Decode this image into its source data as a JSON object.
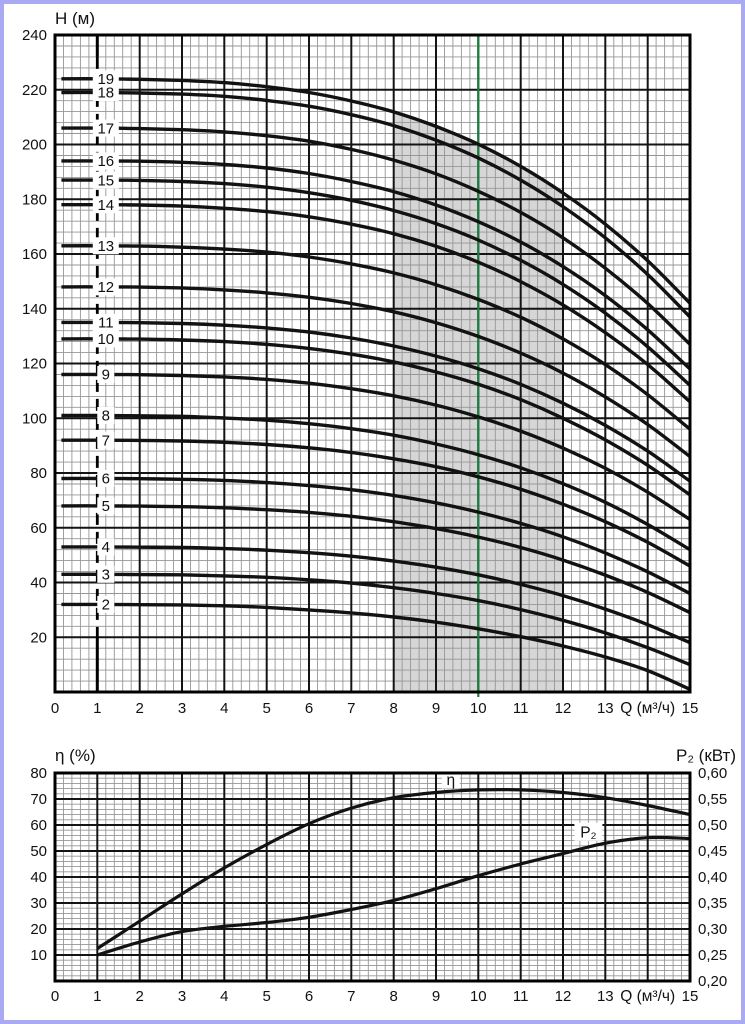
{
  "page": {
    "background": "#ffffff",
    "border_color": "#a9aaf2"
  },
  "chart_data": [
    {
      "type": "line",
      "name": "head-curves",
      "title": "Н (м)",
      "xlabel": "Q (м³/ч)",
      "x_range": [
        0,
        15
      ],
      "y_range": [
        0,
        240
      ],
      "x_tick_labels": [
        "0",
        "1",
        "2",
        "3",
        "4",
        "5",
        "6",
        "7",
        "8",
        "9",
        "10",
        "11",
        "12",
        "13"
      ],
      "x_tick_values": [
        0,
        1,
        2,
        3,
        4,
        5,
        6,
        7,
        8,
        9,
        10,
        11,
        12,
        13
      ],
      "x_end_tick": {
        "label": "15",
        "value": 15
      },
      "x_unit_label_pos": 14,
      "y_tick_labels": [
        "240",
        "220",
        "200",
        "180",
        "160",
        "140",
        "120",
        "100",
        "80",
        "60",
        "40",
        "20"
      ],
      "y_tick_values": [
        240,
        220,
        200,
        180,
        160,
        140,
        120,
        100,
        80,
        60,
        40,
        20
      ],
      "grid": {
        "minor_x_step": 0.2,
        "minor_y_step": 4,
        "major_x_step": 1,
        "major_y_step": 20
      },
      "label_column_q": 1.2,
      "dashed_gridline_q": 1,
      "operating_band": {
        "q_start": 8,
        "q_end": 12,
        "color": "#d6d6d6"
      },
      "nominal_line": {
        "q": 10,
        "color": "#1b7e3f"
      },
      "q_samples": [
        0.15,
        1,
        2,
        3,
        4,
        5,
        6,
        7,
        8,
        9,
        10,
        11,
        12,
        13,
        14,
        15
      ],
      "series": [
        {
          "label": "19",
          "H": [
            224,
            224,
            223.8,
            223.4,
            222.6,
            221.1,
            219,
            215.9,
            211.9,
            206.6,
            200.1,
            192,
            182.3,
            170.9,
            157.5,
            142
          ]
        },
        {
          "label": "18",
          "H": [
            219,
            219,
            218.8,
            218.4,
            217.6,
            216.1,
            214,
            210.9,
            206.9,
            201.6,
            195.1,
            187,
            177.3,
            165.9,
            152.5,
            137
          ]
        },
        {
          "label": "17",
          "H": [
            206,
            206,
            205.8,
            205.4,
            204.6,
            203.2,
            201.2,
            198.2,
            194.3,
            189.3,
            182.9,
            175.2,
            165.9,
            154.8,
            141.9,
            127
          ]
        },
        {
          "label": "16",
          "H": [
            194,
            194,
            193.9,
            193.5,
            192.7,
            191.4,
            189.4,
            186.5,
            182.8,
            177.9,
            171.8,
            164.4,
            155.4,
            144.8,
            132.3,
            118
          ]
        },
        {
          "label": "15",
          "H": [
            187,
            187,
            186.9,
            186.5,
            185.7,
            184.4,
            182.4,
            179.6,
            175.9,
            171.1,
            165.1,
            157.7,
            148.9,
            138.4,
            126.1,
            112
          ]
        },
        {
          "label": "14",
          "H": [
            178,
            178,
            177.9,
            177.5,
            176.7,
            175.5,
            173.6,
            170.9,
            167.4,
            162.8,
            157,
            149.9,
            141.4,
            131.3,
            119.6,
            106
          ]
        },
        {
          "label": "13",
          "H": [
            163,
            163,
            162.9,
            162.5,
            161.8,
            160.7,
            158.9,
            156.4,
            153.1,
            148.8,
            143.4,
            136.9,
            129,
            119.6,
            108.6,
            96
          ]
        },
        {
          "label": "12",
          "H": [
            148,
            148,
            147.9,
            147.6,
            146.9,
            145.8,
            144.2,
            141.9,
            138.9,
            134.9,
            129.9,
            123.8,
            116.5,
            107.8,
            97.7,
            86
          ]
        },
        {
          "label": "11",
          "H": [
            135,
            135,
            134.9,
            134.6,
            134,
            133,
            131.5,
            129.3,
            126.4,
            122.7,
            118.1,
            112.4,
            105.5,
            97.4,
            88,
            77
          ]
        },
        {
          "label": "10",
          "H": [
            129,
            129,
            128.9,
            128.6,
            128,
            127,
            125.5,
            123.4,
            120.6,
            116.9,
            112.4,
            106.8,
            100,
            92.1,
            82.8,
            72
          ]
        },
        {
          "label": "9",
          "H": [
            116,
            116,
            115.9,
            115.6,
            115.1,
            114.2,
            112.8,
            110.8,
            108.2,
            104.8,
            100.5,
            95.3,
            89.1,
            81.7,
            73,
            63
          ]
        },
        {
          "label": "8",
          "H": [
            101,
            101,
            100.9,
            100.7,
            100.1,
            99.3,
            98,
            96.2,
            93.8,
            90.6,
            86.7,
            81.9,
            76.1,
            69.3,
            61.2,
            52
          ]
        },
        {
          "label": "7",
          "H": [
            92,
            92,
            91.9,
            91.7,
            91.2,
            90.4,
            89.2,
            87.5,
            85.2,
            82.3,
            78.6,
            74.1,
            68.6,
            62.2,
            54.7,
            46
          ]
        },
        {
          "label": "6",
          "H": [
            78,
            78,
            77.9,
            77.7,
            77.3,
            76.5,
            75.4,
            73.9,
            71.8,
            69.1,
            65.7,
            61.6,
            56.7,
            50.8,
            43.9,
            36
          ]
        },
        {
          "label": "5",
          "H": [
            68,
            68,
            67.9,
            67.7,
            67.3,
            66.6,
            65.6,
            64.2,
            62.2,
            59.7,
            56.6,
            52.8,
            48.2,
            42.7,
            36.4,
            29
          ]
        },
        {
          "label": "4",
          "H": [
            53,
            53,
            52.9,
            52.8,
            52.4,
            51.8,
            50.9,
            49.6,
            47.8,
            45.6,
            42.8,
            39.3,
            35.2,
            30.3,
            24.6,
            18
          ]
        },
        {
          "label": "3",
          "H": [
            43,
            43,
            42.9,
            42.8,
            42.4,
            41.9,
            41,
            39.8,
            38.1,
            36,
            33.4,
            30.1,
            26.2,
            21.6,
            16.2,
            10
          ]
        },
        {
          "label": "2",
          "H": [
            32,
            32,
            31.9,
            31.8,
            31.5,
            30.9,
            30,
            28.9,
            27.4,
            25.5,
            23.1,
            20.2,
            16.8,
            12.8,
            7.8,
            1
          ]
        }
      ]
    },
    {
      "type": "line",
      "name": "efficiency-power",
      "xlabel": "Q (м³/ч)",
      "x_range": [
        0,
        15
      ],
      "x_tick_labels": [
        "0",
        "1",
        "2",
        "3",
        "4",
        "5",
        "6",
        "7",
        "8",
        "9",
        "10",
        "11",
        "12",
        "13"
      ],
      "x_tick_values": [
        0,
        1,
        2,
        3,
        4,
        5,
        6,
        7,
        8,
        9,
        10,
        11,
        12,
        13
      ],
      "x_end_tick": {
        "label": "15",
        "value": 15
      },
      "x_unit_label_pos": 14,
      "left_axis": {
        "title": "η (%)",
        "range": [
          0,
          80
        ],
        "tick_labels": [
          "80",
          "70",
          "60",
          "50",
          "40",
          "30",
          "20",
          "10"
        ],
        "tick_values": [
          80,
          70,
          60,
          50,
          40,
          30,
          20,
          10
        ]
      },
      "right_axis": {
        "title": "P₂ (кВт)",
        "range": [
          0.2,
          0.6
        ],
        "tick_labels": [
          "0,60",
          "0,55",
          "0,50",
          "0,45",
          "0,40",
          "0,35",
          "0,30",
          "0,25",
          "0,20"
        ],
        "tick_values": [
          0.6,
          0.55,
          0.5,
          0.45,
          0.4,
          0.35,
          0.3,
          0.25,
          0.2
        ]
      },
      "grid": {
        "minor_x_step": 0.2,
        "minor_y_step": 2,
        "major_x_step": 1,
        "major_y_step": 10
      },
      "series": [
        {
          "name": "η",
          "axis": "left",
          "x": [
            1,
            2,
            3,
            4,
            5,
            6,
            7,
            8,
            9,
            10,
            11,
            12,
            13,
            14,
            15
          ],
          "y": [
            12.5,
            23,
            33.5,
            43.5,
            52.5,
            60.5,
            66.5,
            70.5,
            72.5,
            73.5,
            73.5,
            72.5,
            70.5,
            67.5,
            64
          ],
          "label": {
            "text": "η",
            "q": 9.35,
            "value": 77.5
          }
        },
        {
          "name": "P₂",
          "axis": "right",
          "x": [
            1,
            2,
            3,
            4,
            5,
            6,
            7,
            8,
            9,
            10,
            11,
            12,
            13,
            14,
            15
          ],
          "y": [
            0.25,
            0.275,
            0.295,
            0.305,
            0.3125,
            0.3225,
            0.3375,
            0.355,
            0.3775,
            0.4025,
            0.425,
            0.445,
            0.465,
            0.4755,
            0.474
          ],
          "label": {
            "text": "P₂",
            "q": 12.6,
            "value": 0.487
          }
        }
      ]
    }
  ]
}
